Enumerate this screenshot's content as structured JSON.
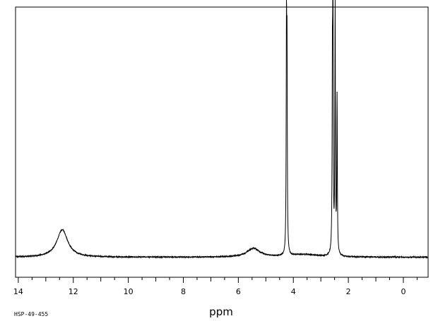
{
  "chart_data": {
    "type": "line",
    "title": "",
    "xlabel": "ppm",
    "ylabel": "",
    "xlim": [
      14.1,
      -0.9
    ],
    "x_reversed": true,
    "ylim": [
      -0.08,
      1.0
    ],
    "grid": false,
    "legend": "none",
    "x_ticks": [
      14,
      12,
      10,
      8,
      6,
      4,
      2,
      0
    ],
    "x_tick_labels": [
      "14",
      "12",
      "10",
      "8",
      "6",
      "4",
      "2",
      "0"
    ],
    "peaks": [
      {
        "shift": 12.4,
        "height": 0.11,
        "width": 0.24,
        "shape": "broad"
      },
      {
        "shift": 5.45,
        "height": 0.035,
        "width": 0.28,
        "shape": "broad"
      },
      {
        "shift": 3.6,
        "height": 0.01,
        "width": 0.6,
        "shape": "broad"
      },
      {
        "shift": 4.25,
        "height": 0.83,
        "width": 0.012,
        "shape": "sharp"
      },
      {
        "shift": 4.23,
        "height": 0.74,
        "width": 0.012,
        "shape": "sharp"
      },
      {
        "shift": 2.58,
        "height": 0.64,
        "width": 0.012,
        "shape": "sharp"
      },
      {
        "shift": 2.56,
        "height": 0.97,
        "width": 0.012,
        "shape": "sharp"
      },
      {
        "shift": 2.48,
        "height": 0.98,
        "width": 0.012,
        "shape": "sharp"
      },
      {
        "shift": 2.41,
        "height": 0.62,
        "width": 0.012,
        "shape": "sharp"
      }
    ],
    "baseline": 0.0,
    "line_color": "#000000"
  },
  "footer": {
    "sample_id": "HSP-49-455"
  }
}
